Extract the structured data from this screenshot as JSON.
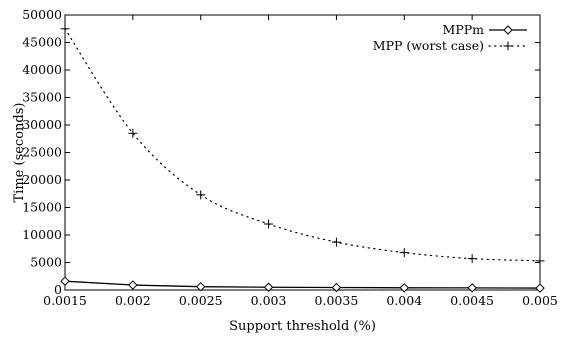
{
  "chart_data": {
    "type": "line",
    "xlabel": "Support threshold (%)",
    "ylabel": "Time (seconds)",
    "xlim": [
      0.0015,
      0.005
    ],
    "ylim": [
      0,
      50000
    ],
    "x_ticks": [
      "0.0015",
      "0.002",
      "0.0025",
      "0.003",
      "0.0035",
      "0.004",
      "0.0045",
      "0.005"
    ],
    "y_ticks": [
      "0",
      "5000",
      "10000",
      "15000",
      "20000",
      "25000",
      "30000",
      "35000",
      "40000",
      "45000",
      "50000"
    ],
    "grid": false,
    "legend_position": "top-right",
    "series": [
      {
        "name": "MPPm",
        "line_style": "solid",
        "marker": "diamond",
        "x": [
          0.0015,
          0.002,
          0.0025,
          0.003,
          0.0035,
          0.004,
          0.0045,
          0.005
        ],
        "values": [
          1600,
          900,
          600,
          500,
          450,
          400,
          380,
          350
        ]
      },
      {
        "name": "MPP (worst case)",
        "line_style": "dotted",
        "marker": "plus",
        "x": [
          0.0015,
          0.002,
          0.0025,
          0.003,
          0.0035,
          0.004,
          0.0045,
          0.005
        ],
        "values": [
          47500,
          28500,
          17300,
          12000,
          8700,
          6800,
          5700,
          5300
        ]
      }
    ]
  }
}
